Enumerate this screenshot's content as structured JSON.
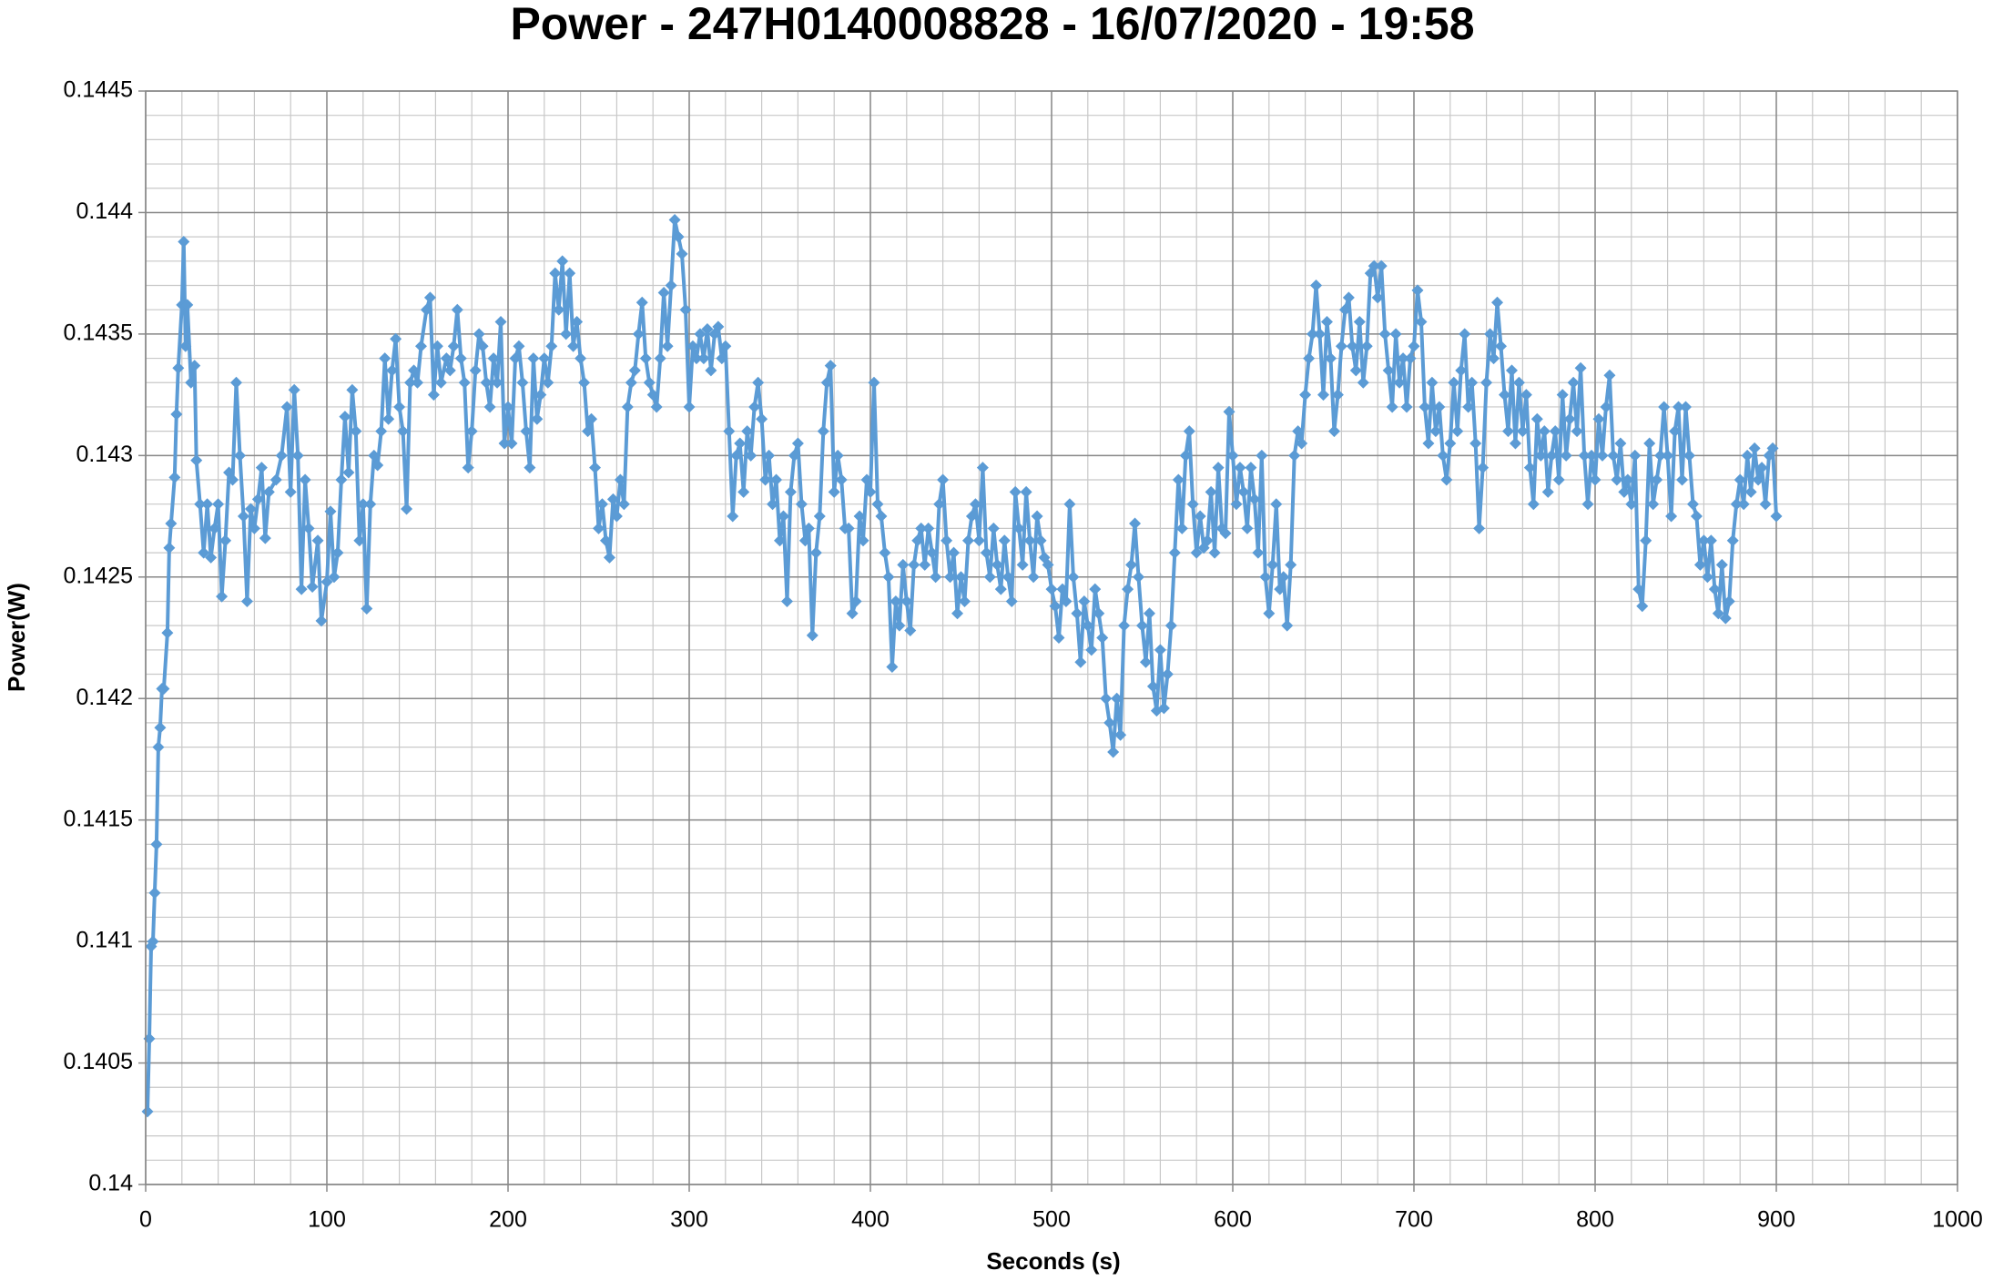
{
  "chart_data": {
    "type": "line",
    "title": "Power - 247H0140008828 - 16/07/2020 - 19:58",
    "x_label": "Seconds (s)",
    "y_label": "Power(W)",
    "color": "#5b9bd5",
    "marker": "diamond",
    "grid": true,
    "minor_grid": {
      "x": 20,
      "y": 0.0001
    },
    "xlim": [
      0,
      1000
    ],
    "xticks": [
      0,
      100,
      200,
      300,
      400,
      500,
      600,
      700,
      800,
      900,
      1000
    ],
    "ylim": [
      0.14,
      0.1445
    ],
    "yticks": [
      0.14,
      0.1405,
      0.141,
      0.1415,
      0.142,
      0.1425,
      0.143,
      0.1435,
      0.144,
      0.1445
    ],
    "x": [
      1,
      2,
      3,
      4,
      5,
      6,
      7,
      8,
      9,
      10,
      12,
      13,
      14,
      16,
      17,
      18,
      20,
      21,
      22,
      23,
      25,
      27,
      28,
      30,
      32,
      34,
      36,
      38,
      40,
      42,
      44,
      46,
      48,
      50,
      52,
      54,
      56,
      58,
      60,
      62,
      64,
      66,
      68,
      72,
      75,
      78,
      80,
      82,
      84,
      86,
      88,
      90,
      92,
      95,
      97,
      100,
      102,
      104,
      106,
      108,
      110,
      112,
      114,
      116,
      118,
      120,
      122,
      124,
      126,
      128,
      130,
      132,
      134,
      136,
      138,
      140,
      142,
      144,
      146,
      148,
      150,
      152,
      155,
      157,
      159,
      161,
      163,
      166,
      168,
      170,
      172,
      174,
      176,
      178,
      180,
      182,
      184,
      186,
      188,
      190,
      192,
      194,
      196,
      198,
      200,
      202,
      204,
      206,
      208,
      210,
      212,
      214,
      216,
      218,
      220,
      222,
      224,
      226,
      228,
      230,
      232,
      234,
      236,
      238,
      240,
      242,
      244,
      246,
      248,
      250,
      252,
      254,
      256,
      258,
      260,
      262,
      264,
      266,
      268,
      270,
      272,
      274,
      276,
      278,
      280,
      282,
      284,
      286,
      288,
      290,
      292,
      294,
      296,
      298,
      300,
      302,
      304,
      306,
      308,
      310,
      312,
      314,
      316,
      318,
      320,
      322,
      324,
      326,
      328,
      330,
      332,
      334,
      336,
      338,
      340,
      342,
      344,
      346,
      348,
      350,
      352,
      354,
      356,
      358,
      360,
      362,
      364,
      366,
      368,
      370,
      372,
      374,
      376,
      378,
      380,
      382,
      384,
      386,
      388,
      390,
      392,
      394,
      396,
      398,
      400,
      402,
      404,
      406,
      408,
      410,
      412,
      414,
      416,
      418,
      420,
      422,
      424,
      426,
      428,
      430,
      432,
      434,
      436,
      438,
      440,
      442,
      444,
      446,
      448,
      450,
      452,
      454,
      456,
      458,
      460,
      462,
      464,
      466,
      468,
      470,
      472,
      474,
      476,
      478,
      480,
      482,
      484,
      486,
      488,
      490,
      492,
      494,
      496,
      498,
      500,
      502,
      504,
      506,
      508,
      510,
      512,
      514,
      516,
      518,
      520,
      522,
      524,
      526,
      528,
      530,
      532,
      534,
      536,
      538,
      540,
      542,
      544,
      546,
      548,
      550,
      552,
      554,
      556,
      558,
      560,
      562,
      564,
      566,
      568,
      570,
      572,
      574,
      576,
      578,
      580,
      582,
      584,
      586,
      588,
      590,
      592,
      594,
      596,
      598,
      600,
      602,
      604,
      606,
      608,
      610,
      612,
      614,
      616,
      618,
      620,
      622,
      624,
      626,
      628,
      630,
      632,
      634,
      636,
      638,
      640,
      642,
      644,
      646,
      648,
      650,
      652,
      654,
      656,
      658,
      660,
      662,
      664,
      666,
      668,
      670,
      672,
      674,
      676,
      678,
      680,
      682,
      684,
      686,
      688,
      690,
      692,
      694,
      696,
      698,
      700,
      702,
      704,
      706,
      708,
      710,
      712,
      714,
      716,
      718,
      720,
      722,
      724,
      726,
      728,
      730,
      732,
      734,
      736,
      738,
      740,
      742,
      744,
      746,
      748,
      750,
      752,
      754,
      756,
      758,
      760,
      762,
      764,
      766,
      768,
      770,
      772,
      774,
      776,
      778,
      780,
      782,
      784,
      786,
      788,
      790,
      792,
      794,
      796,
      798,
      800,
      802,
      804,
      806,
      808,
      810,
      812,
      814,
      816,
      818,
      820,
      822,
      824,
      826,
      828,
      830,
      832,
      834,
      836,
      838,
      840,
      842,
      844,
      846,
      848,
      850,
      852,
      854,
      856,
      858,
      860,
      862,
      864,
      866,
      868,
      870,
      872,
      874,
      876,
      878,
      880,
      882,
      884,
      886,
      888,
      890,
      892,
      894,
      896,
      898,
      900
    ],
    "values": [
      0.1403,
      0.1406,
      0.14098,
      0.141,
      0.1412,
      0.1414,
      0.1418,
      0.14188,
      0.14204,
      0.14204,
      0.14227,
      0.14262,
      0.14272,
      0.14291,
      0.14317,
      0.14336,
      0.14362,
      0.14388,
      0.14345,
      0.14362,
      0.1433,
      0.14337,
      0.14298,
      0.1428,
      0.1426,
      0.1428,
      0.14258,
      0.1427,
      0.1428,
      0.14242,
      0.14265,
      0.14293,
      0.1429,
      0.1433,
      0.143,
      0.14275,
      0.1424,
      0.14278,
      0.1427,
      0.14282,
      0.14295,
      0.14266,
      0.14285,
      0.1429,
      0.143,
      0.1432,
      0.14285,
      0.14327,
      0.143,
      0.14245,
      0.1429,
      0.1427,
      0.14246,
      0.14265,
      0.14232,
      0.14248,
      0.14277,
      0.1425,
      0.1426,
      0.1429,
      0.14316,
      0.14293,
      0.14327,
      0.1431,
      0.14265,
      0.1428,
      0.14237,
      0.1428,
      0.143,
      0.14296,
      0.1431,
      0.1434,
      0.14315,
      0.14335,
      0.14348,
      0.1432,
      0.1431,
      0.14278,
      0.1433,
      0.14335,
      0.1433,
      0.14345,
      0.1436,
      0.14365,
      0.14325,
      0.14345,
      0.1433,
      0.1434,
      0.14335,
      0.14345,
      0.1436,
      0.1434,
      0.1433,
      0.14295,
      0.1431,
      0.14335,
      0.1435,
      0.14345,
      0.1433,
      0.1432,
      0.1434,
      0.1433,
      0.14355,
      0.14305,
      0.1432,
      0.14305,
      0.1434,
      0.14345,
      0.1433,
      0.1431,
      0.14295,
      0.1434,
      0.14315,
      0.14325,
      0.1434,
      0.1433,
      0.14345,
      0.14375,
      0.1436,
      0.1438,
      0.1435,
      0.14375,
      0.14345,
      0.14355,
      0.1434,
      0.1433,
      0.1431,
      0.14315,
      0.14295,
      0.1427,
      0.1428,
      0.14265,
      0.14258,
      0.14282,
      0.14275,
      0.1429,
      0.1428,
      0.1432,
      0.1433,
      0.14335,
      0.1435,
      0.14363,
      0.1434,
      0.1433,
      0.14325,
      0.1432,
      0.1434,
      0.14367,
      0.14345,
      0.1437,
      0.14397,
      0.1439,
      0.14383,
      0.1436,
      0.1432,
      0.14345,
      0.1434,
      0.1435,
      0.1434,
      0.14352,
      0.14335,
      0.1435,
      0.14353,
      0.1434,
      0.14345,
      0.1431,
      0.14275,
      0.143,
      0.14305,
      0.14285,
      0.1431,
      0.143,
      0.1432,
      0.1433,
      0.14315,
      0.1429,
      0.143,
      0.1428,
      0.1429,
      0.14265,
      0.14275,
      0.1424,
      0.14285,
      0.143,
      0.14305,
      0.1428,
      0.14265,
      0.1427,
      0.14226,
      0.1426,
      0.14275,
      0.1431,
      0.1433,
      0.14337,
      0.14285,
      0.143,
      0.1429,
      0.1427,
      0.1427,
      0.14235,
      0.1424,
      0.14275,
      0.14265,
      0.1429,
      0.14285,
      0.1433,
      0.1428,
      0.14275,
      0.1426,
      0.1425,
      0.14213,
      0.1424,
      0.1423,
      0.14255,
      0.1424,
      0.14228,
      0.14255,
      0.14265,
      0.1427,
      0.14255,
      0.1427,
      0.1426,
      0.1425,
      0.1428,
      0.1429,
      0.14265,
      0.1425,
      0.1426,
      0.14235,
      0.1425,
      0.1424,
      0.14265,
      0.14275,
      0.1428,
      0.14265,
      0.14295,
      0.1426,
      0.1425,
      0.1427,
      0.14255,
      0.14245,
      0.14265,
      0.1425,
      0.1424,
      0.14285,
      0.1427,
      0.14255,
      0.14285,
      0.14265,
      0.1425,
      0.14275,
      0.14265,
      0.14258,
      0.14255,
      0.14245,
      0.14238,
      0.14225,
      0.14245,
      0.1424,
      0.1428,
      0.1425,
      0.14235,
      0.14215,
      0.1424,
      0.1423,
      0.1422,
      0.14245,
      0.14235,
      0.14225,
      0.142,
      0.1419,
      0.14178,
      0.142,
      0.14185,
      0.1423,
      0.14245,
      0.14255,
      0.14272,
      0.1425,
      0.1423,
      0.14215,
      0.14235,
      0.14205,
      0.14195,
      0.1422,
      0.14196,
      0.1421,
      0.1423,
      0.1426,
      0.1429,
      0.1427,
      0.143,
      0.1431,
      0.1428,
      0.1426,
      0.14275,
      0.14262,
      0.14265,
      0.14285,
      0.1426,
      0.14295,
      0.1427,
      0.14268,
      0.14318,
      0.143,
      0.1428,
      0.14295,
      0.14285,
      0.1427,
      0.14295,
      0.14282,
      0.1426,
      0.143,
      0.1425,
      0.14235,
      0.14255,
      0.1428,
      0.14245,
      0.1425,
      0.1423,
      0.14255,
      0.143,
      0.1431,
      0.14305,
      0.14325,
      0.1434,
      0.1435,
      0.1437,
      0.1435,
      0.14325,
      0.14355,
      0.1434,
      0.1431,
      0.14325,
      0.14345,
      0.1436,
      0.14365,
      0.14345,
      0.14335,
      0.14355,
      0.1433,
      0.14345,
      0.14375,
      0.14378,
      0.14365,
      0.14378,
      0.1435,
      0.14335,
      0.1432,
      0.1435,
      0.1433,
      0.1434,
      0.1432,
      0.1434,
      0.14345,
      0.14368,
      0.14355,
      0.1432,
      0.14305,
      0.1433,
      0.1431,
      0.1432,
      0.143,
      0.1429,
      0.14305,
      0.1433,
      0.1431,
      0.14335,
      0.1435,
      0.1432,
      0.1433,
      0.14305,
      0.1427,
      0.14295,
      0.1433,
      0.1435,
      0.1434,
      0.14363,
      0.14345,
      0.14325,
      0.1431,
      0.14335,
      0.14305,
      0.1433,
      0.1431,
      0.14325,
      0.14295,
      0.1428,
      0.14315,
      0.143,
      0.1431,
      0.14285,
      0.143,
      0.1431,
      0.1429,
      0.14325,
      0.143,
      0.14315,
      0.1433,
      0.1431,
      0.14336,
      0.143,
      0.1428,
      0.143,
      0.1429,
      0.14315,
      0.143,
      0.1432,
      0.14333,
      0.143,
      0.1429,
      0.14305,
      0.14285,
      0.1429,
      0.1428,
      0.143,
      0.14245,
      0.14238,
      0.14265,
      0.14305,
      0.1428,
      0.1429,
      0.143,
      0.1432,
      0.143,
      0.14275,
      0.1431,
      0.1432,
      0.1429,
      0.1432,
      0.143,
      0.1428,
      0.14275,
      0.14255,
      0.14265,
      0.1425,
      0.14265,
      0.14245,
      0.14235,
      0.14255,
      0.14233,
      0.1424,
      0.14265,
      0.1428,
      0.1429,
      0.1428,
      0.143,
      0.14285,
      0.14303,
      0.1429,
      0.14295,
      0.1428,
      0.143,
      0.14303,
      0.14275
    ]
  }
}
